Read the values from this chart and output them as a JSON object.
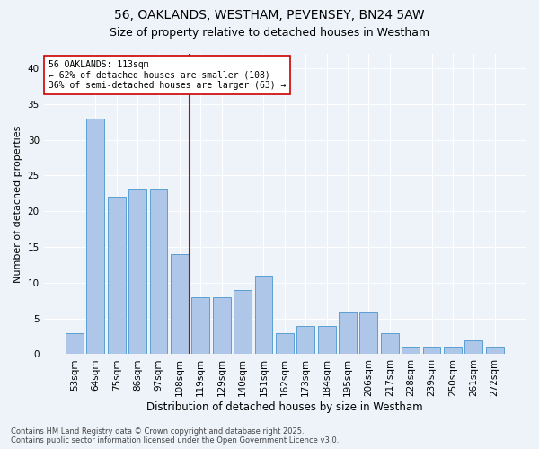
{
  "title_line1": "56, OAKLANDS, WESTHAM, PEVENSEY, BN24 5AW",
  "title_line2": "Size of property relative to detached houses in Westham",
  "xlabel": "Distribution of detached houses by size in Westham",
  "ylabel": "Number of detached properties",
  "categories": [
    "53sqm",
    "64sqm",
    "75sqm",
    "86sqm",
    "97sqm",
    "108sqm",
    "119sqm",
    "129sqm",
    "140sqm",
    "151sqm",
    "162sqm",
    "173sqm",
    "184sqm",
    "195sqm",
    "206sqm",
    "217sqm",
    "228sqm",
    "239sqm",
    "250sqm",
    "261sqm",
    "272sqm"
  ],
  "values": [
    3,
    33,
    22,
    23,
    23,
    14,
    8,
    8,
    9,
    11,
    3,
    4,
    4,
    6,
    6,
    3,
    1,
    1,
    1,
    2,
    1
  ],
  "bar_color": "#aec6e8",
  "bar_edge_color": "#5a9fd4",
  "marker_label": "56 OAKLANDS: 113sqm",
  "annotation_line2": "← 62% of detached houses are smaller (108)",
  "annotation_line3": "36% of semi-detached houses are larger (63) →",
  "vline_color": "#cc0000",
  "annotation_box_color": "#ffffff",
  "annotation_box_edge": "#cc0000",
  "ylim": [
    0,
    42
  ],
  "yticks": [
    0,
    5,
    10,
    15,
    20,
    25,
    30,
    35,
    40
  ],
  "footer_line1": "Contains HM Land Registry data © Crown copyright and database right 2025.",
  "footer_line2": "Contains public sector information licensed under the Open Government Licence v3.0.",
  "bg_color": "#eef3fa",
  "plot_bg_color": "#eef3fa",
  "grid_color": "#ffffff",
  "title_fontsize": 10,
  "subtitle_fontsize": 9,
  "bar_width": 0.85
}
